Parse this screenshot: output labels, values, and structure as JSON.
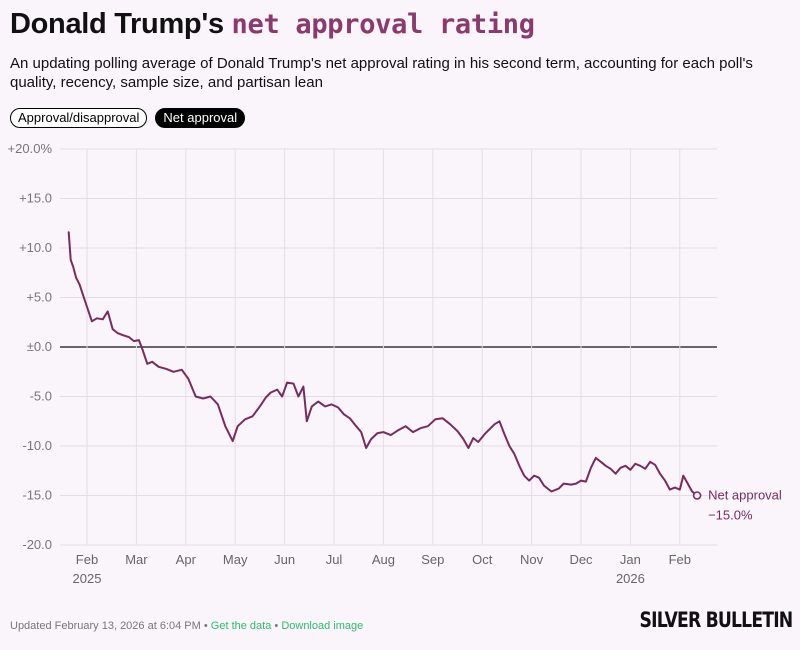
{
  "header": {
    "title_plain": "Donald Trump's",
    "title_highlight": "net approval rating",
    "subtitle": "An updating polling average of Donald Trump's net approval rating in his second term, accounting for each poll's quality, recency, sample size, and partisan lean"
  },
  "toggles": [
    {
      "label": "Approval/disapproval",
      "active": false
    },
    {
      "label": "Net approval",
      "active": true
    }
  ],
  "footer": {
    "updated": "Updated February 13, 2026 at 6:04 PM",
    "separator": "•",
    "get_data": "Get the data",
    "download": "Download image"
  },
  "brand": "SILVER BULLETIN",
  "colors": {
    "series": "#7a2b5d",
    "accent": "#8a3a6c",
    "link": "#2bbf6a",
    "background": "#faf4fb"
  },
  "chart_data": {
    "type": "line",
    "title": "Donald Trump's net approval rating",
    "ylabel": "Net approval",
    "ylim": [
      -20,
      20
    ],
    "yticks": [
      {
        "v": 20,
        "label": "+20.0%"
      },
      {
        "v": 15,
        "label": "+15.0"
      },
      {
        "v": 10,
        "label": "+10.0"
      },
      {
        "v": 5,
        "label": "+5.0"
      },
      {
        "v": 0,
        "label": "±0.0"
      },
      {
        "v": -5,
        "label": "-5.0"
      },
      {
        "v": -10,
        "label": "-10.0"
      },
      {
        "v": -15,
        "label": "-15.0"
      },
      {
        "v": -20,
        "label": "-20.0"
      }
    ],
    "xrange": [
      -0.55,
      12.5
    ],
    "xticks": [
      {
        "v": 0,
        "label": "Feb",
        "year": "2025"
      },
      {
        "v": 1,
        "label": "Mar"
      },
      {
        "v": 2,
        "label": "Apr"
      },
      {
        "v": 3,
        "label": "May"
      },
      {
        "v": 4,
        "label": "Jun"
      },
      {
        "v": 5,
        "label": "Jul"
      },
      {
        "v": 6,
        "label": "Aug"
      },
      {
        "v": 7,
        "label": "Sep"
      },
      {
        "v": 8,
        "label": "Oct"
      },
      {
        "v": 9,
        "label": "Nov"
      },
      {
        "v": 10,
        "label": "Dec"
      },
      {
        "v": 11,
        "label": "Jan",
        "year": "2026"
      },
      {
        "v": 12,
        "label": "Feb"
      }
    ],
    "series": [
      {
        "name": "Net approval",
        "final_label": "−15.0%",
        "points": [
          [
            -0.37,
            11.6
          ],
          [
            -0.33,
            8.8
          ],
          [
            -0.28,
            8.1
          ],
          [
            -0.22,
            7.0
          ],
          [
            -0.15,
            6.3
          ],
          [
            -0.05,
            4.8
          ],
          [
            0.1,
            2.6
          ],
          [
            0.2,
            2.9
          ],
          [
            0.32,
            2.8
          ],
          [
            0.42,
            3.6
          ],
          [
            0.52,
            1.8
          ],
          [
            0.62,
            1.4
          ],
          [
            0.72,
            1.2
          ],
          [
            0.85,
            1.0
          ],
          [
            0.95,
            0.6
          ],
          [
            1.05,
            0.7
          ],
          [
            1.12,
            -0.2
          ],
          [
            1.22,
            -1.7
          ],
          [
            1.32,
            -1.5
          ],
          [
            1.45,
            -2.0
          ],
          [
            1.6,
            -2.2
          ],
          [
            1.75,
            -2.5
          ],
          [
            1.92,
            -2.3
          ],
          [
            2.05,
            -3.2
          ],
          [
            2.2,
            -5.0
          ],
          [
            2.35,
            -5.2
          ],
          [
            2.5,
            -5.0
          ],
          [
            2.65,
            -5.8
          ],
          [
            2.8,
            -8.0
          ],
          [
            2.95,
            -9.5
          ],
          [
            3.05,
            -8.0
          ],
          [
            3.2,
            -7.3
          ],
          [
            3.35,
            -7.0
          ],
          [
            3.5,
            -6.0
          ],
          [
            3.62,
            -5.1
          ],
          [
            3.72,
            -4.6
          ],
          [
            3.85,
            -4.3
          ],
          [
            3.95,
            -5.0
          ],
          [
            4.05,
            -3.6
          ],
          [
            4.18,
            -3.7
          ],
          [
            4.28,
            -5.0
          ],
          [
            4.38,
            -4.0
          ],
          [
            4.45,
            -7.5
          ],
          [
            4.55,
            -6.0
          ],
          [
            4.68,
            -5.5
          ],
          [
            4.82,
            -6.0
          ],
          [
            4.95,
            -5.8
          ],
          [
            5.08,
            -6.1
          ],
          [
            5.2,
            -6.8
          ],
          [
            5.32,
            -7.2
          ],
          [
            5.45,
            -8.0
          ],
          [
            5.55,
            -8.6
          ],
          [
            5.65,
            -10.2
          ],
          [
            5.75,
            -9.3
          ],
          [
            5.88,
            -8.7
          ],
          [
            6.0,
            -8.6
          ],
          [
            6.15,
            -8.9
          ],
          [
            6.3,
            -8.4
          ],
          [
            6.45,
            -8.0
          ],
          [
            6.6,
            -8.6
          ],
          [
            6.75,
            -8.2
          ],
          [
            6.9,
            -8.0
          ],
          [
            7.05,
            -7.3
          ],
          [
            7.2,
            -7.2
          ],
          [
            7.35,
            -7.8
          ],
          [
            7.5,
            -8.5
          ],
          [
            7.62,
            -9.3
          ],
          [
            7.72,
            -10.2
          ],
          [
            7.82,
            -9.2
          ],
          [
            7.92,
            -9.6
          ],
          [
            8.05,
            -8.8
          ],
          [
            8.15,
            -8.3
          ],
          [
            8.25,
            -7.8
          ],
          [
            8.35,
            -7.5
          ],
          [
            8.45,
            -8.8
          ],
          [
            8.55,
            -10.0
          ],
          [
            8.65,
            -10.8
          ],
          [
            8.75,
            -12.0
          ],
          [
            8.85,
            -13.0
          ],
          [
            8.95,
            -13.5
          ],
          [
            9.05,
            -13.0
          ],
          [
            9.15,
            -13.2
          ],
          [
            9.25,
            -14.0
          ],
          [
            9.4,
            -14.6
          ],
          [
            9.55,
            -14.3
          ],
          [
            9.65,
            -13.8
          ],
          [
            9.8,
            -13.9
          ],
          [
            9.9,
            -13.8
          ],
          [
            10.0,
            -13.5
          ],
          [
            10.1,
            -13.6
          ],
          [
            10.2,
            -12.2
          ],
          [
            10.3,
            -11.2
          ],
          [
            10.4,
            -11.6
          ],
          [
            10.5,
            -12.0
          ],
          [
            10.6,
            -12.3
          ],
          [
            10.7,
            -12.8
          ],
          [
            10.8,
            -12.2
          ],
          [
            10.9,
            -12.0
          ],
          [
            11.0,
            -12.4
          ],
          [
            11.1,
            -11.8
          ],
          [
            11.2,
            -12.0
          ],
          [
            11.3,
            -12.3
          ],
          [
            11.4,
            -11.6
          ],
          [
            11.5,
            -11.9
          ],
          [
            11.6,
            -12.8
          ],
          [
            11.7,
            -13.5
          ],
          [
            11.8,
            -14.4
          ],
          [
            11.9,
            -14.2
          ],
          [
            12.0,
            -14.4
          ],
          [
            12.07,
            -13.0
          ],
          [
            12.15,
            -13.7
          ],
          [
            12.25,
            -14.6
          ],
          [
            12.35,
            -15.0
          ]
        ]
      }
    ]
  }
}
